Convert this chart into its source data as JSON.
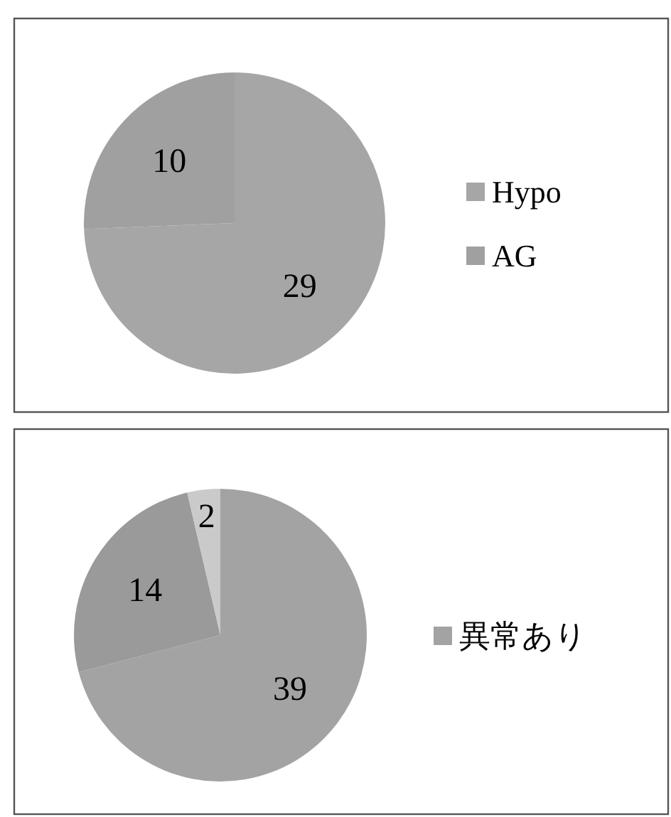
{
  "chart_data": [
    {
      "type": "pie",
      "categories": [
        "Hypo",
        "AG"
      ],
      "values": [
        29,
        10
      ],
      "colors": [
        "#a6a6a6",
        "#a0a0a0"
      ],
      "data_labels": true,
      "legend": "right"
    },
    {
      "type": "pie",
      "categories": [
        "異常あり",
        null,
        null
      ],
      "values": [
        39,
        14,
        2
      ],
      "colors": [
        "#a3a3a3",
        "#9a9a9a",
        "#cacaca"
      ],
      "data_labels": true,
      "legend": "right"
    }
  ]
}
